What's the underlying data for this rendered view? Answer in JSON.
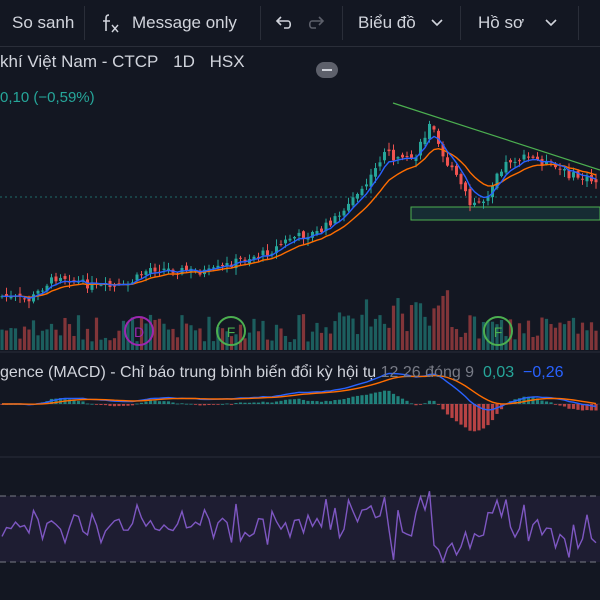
{
  "toolbar": {
    "compare_label": "So sanh",
    "formula_icon": "fx-icon",
    "message_label": "Message only",
    "undo_icon": "undo-icon",
    "redo_icon": "redo-icon",
    "chart_type_label": "Biểu đồ",
    "profile_label": "Hồ sơ"
  },
  "legend": {
    "name": "khí Việt Nam - CTCP",
    "interval": "1D",
    "exchange": "HSX",
    "change": "0,10 (−0,59%)"
  },
  "markers": [
    "D",
    "F",
    "F"
  ],
  "macd": {
    "title": "gence (MACD) - Chỉ báo trung bình biến đổi kỳ hội tụ",
    "params": "12 26 đóng 9",
    "value1": "0,03",
    "value2": "−0,26"
  },
  "colors": {
    "up": "#26a69a",
    "down": "#ef5350",
    "ma_fast": "#2962ff",
    "ma_slow": "#ff6d00",
    "rsi": "#7e57c2",
    "trendline": "#4caf50"
  }
}
